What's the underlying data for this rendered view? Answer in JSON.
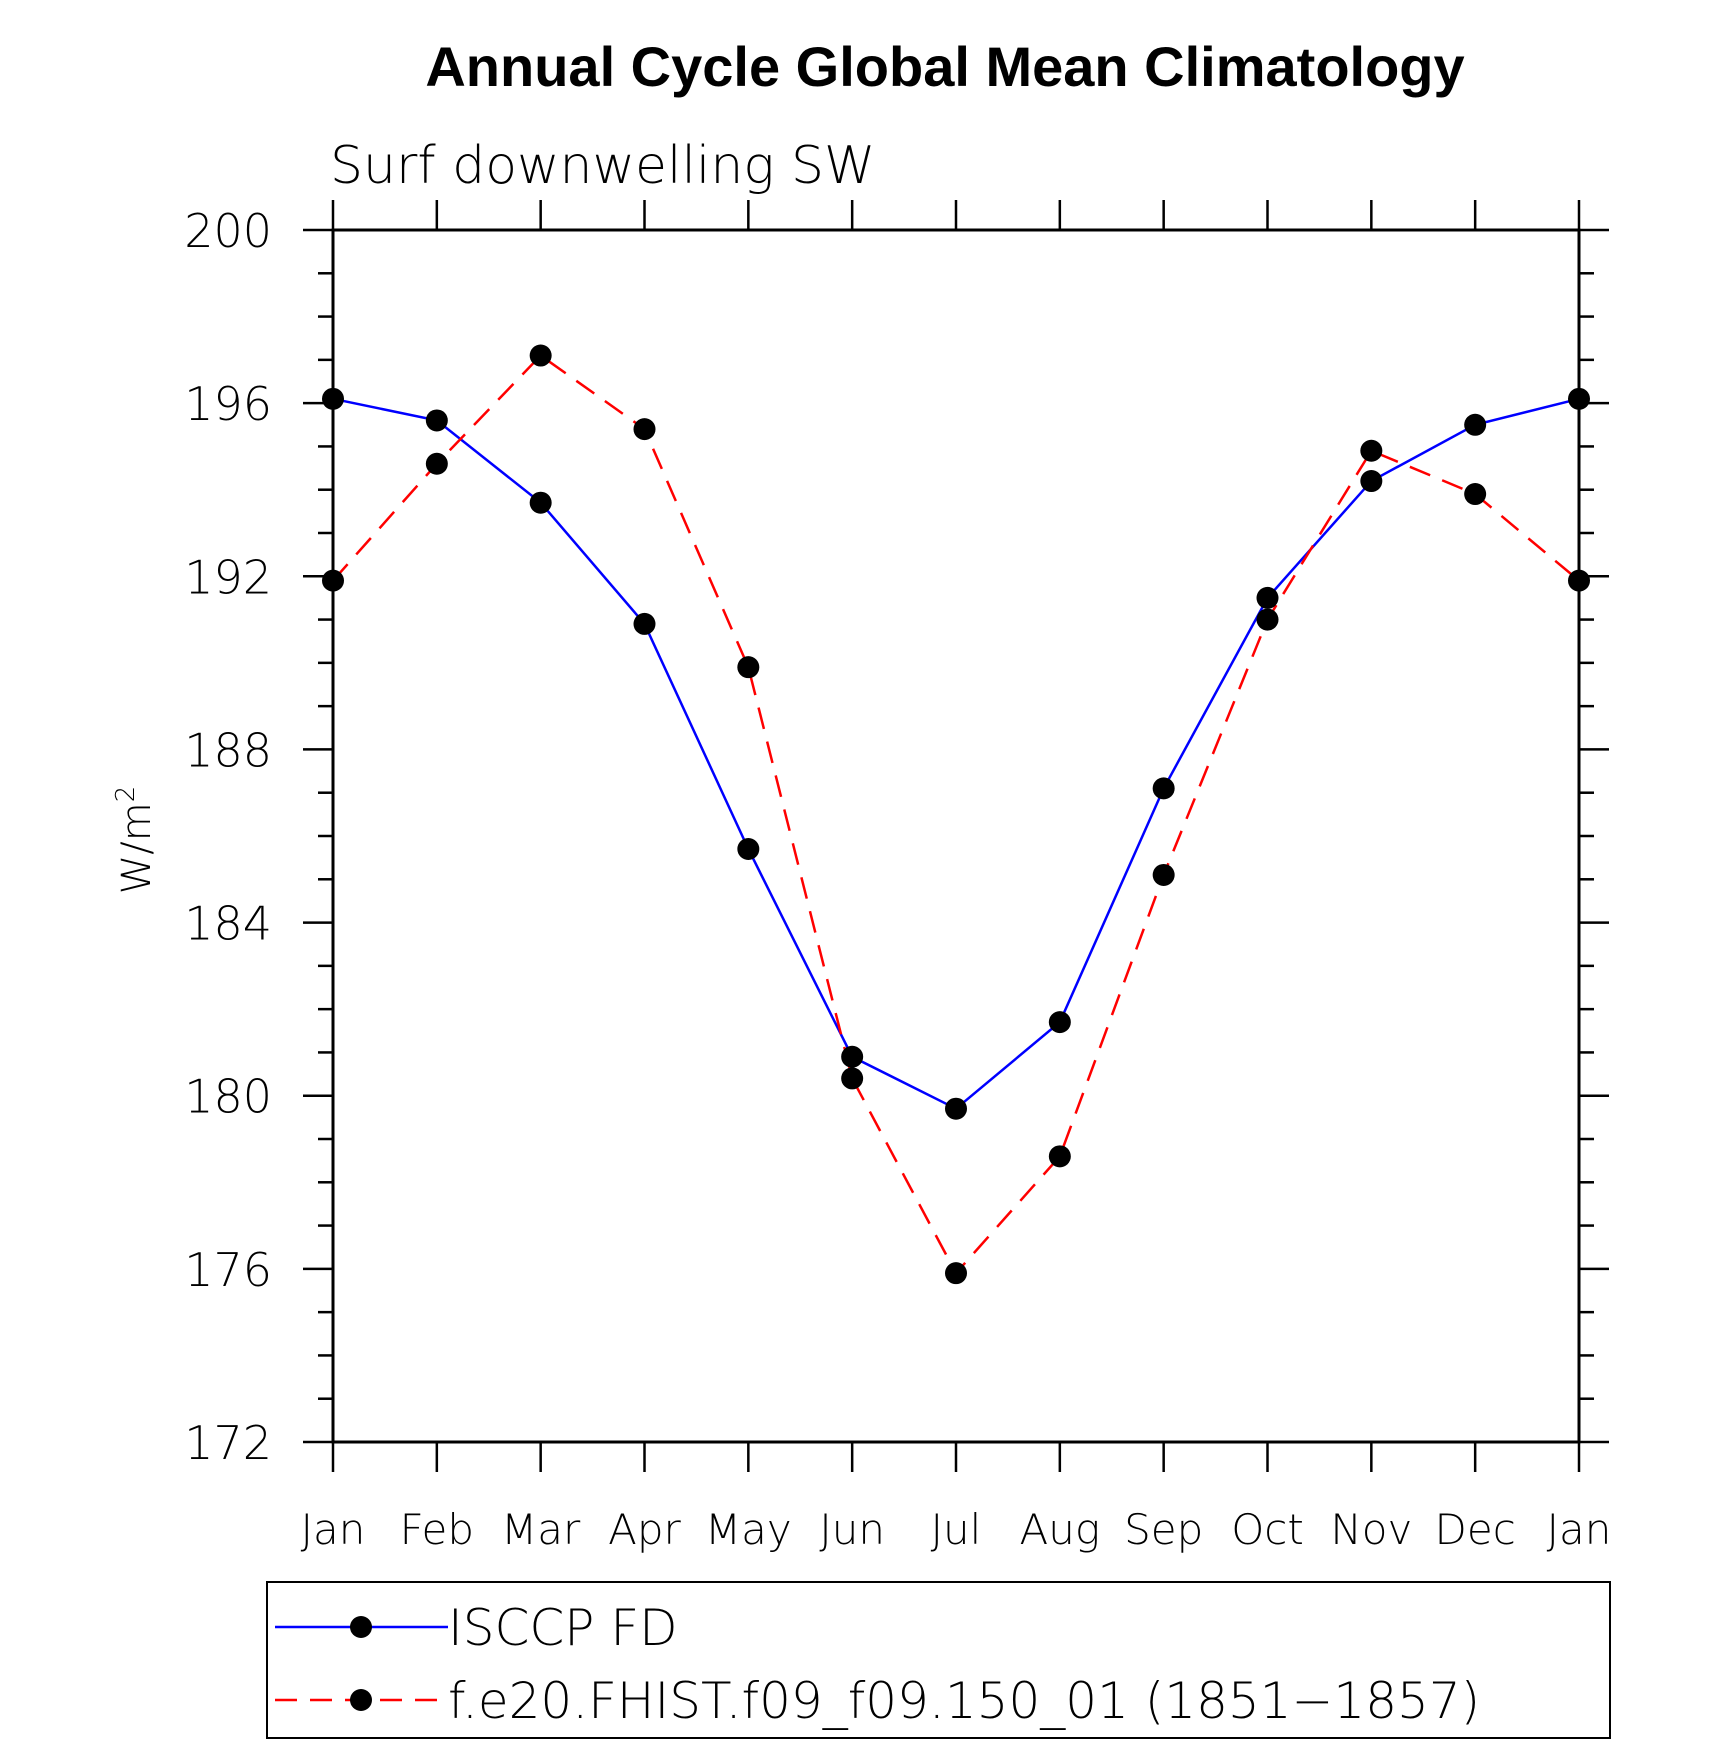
{
  "chart_data": {
    "type": "line",
    "title": "Annual Cycle Global Mean Climatology",
    "subtitle": "Surf downwelling SW",
    "ylabel_base": "W/m",
    "ylabel_sup": "2",
    "xlabel": "",
    "categories": [
      "Jan",
      "Feb",
      "Mar",
      "Apr",
      "May",
      "Jun",
      "Jul",
      "Aug",
      "Sep",
      "Oct",
      "Nov",
      "Dec",
      "Jan"
    ],
    "ylim": [
      172,
      200
    ],
    "yticks": [
      172,
      176,
      180,
      184,
      188,
      192,
      196,
      200
    ],
    "grid": false,
    "legend_position": "bottom",
    "series": [
      {
        "name": "ISCCP FD",
        "color": "#0000ff",
        "dash": "solid",
        "values": [
          196.1,
          195.6,
          193.7,
          190.9,
          185.7,
          180.9,
          179.7,
          181.7,
          187.1,
          191.5,
          194.2,
          195.5,
          196.1
        ]
      },
      {
        "name": "f.e20.FHIST.f09_f09.150_01 (1851−1857)",
        "color": "#ff0000",
        "dash": "dashed",
        "values": [
          191.9,
          194.6,
          197.1,
          195.4,
          189.9,
          180.4,
          175.9,
          178.6,
          185.1,
          191.0,
          194.9,
          193.9,
          191.9
        ]
      }
    ]
  }
}
